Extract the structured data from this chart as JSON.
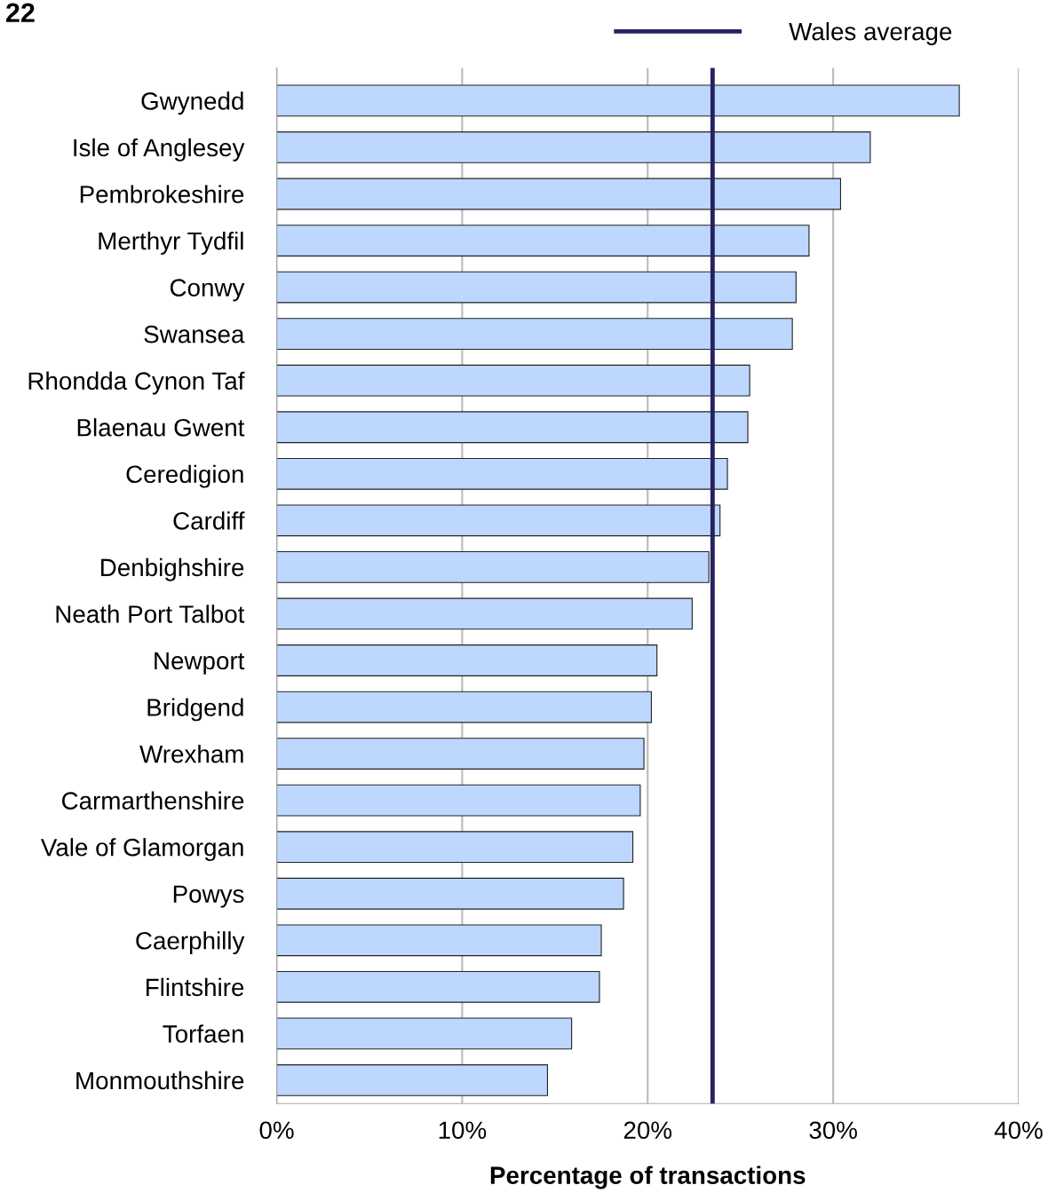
{
  "chart_data": {
    "type": "bar",
    "orientation": "horizontal",
    "xlabel": "Percentage of transactions",
    "annotations": [
      "22"
    ],
    "categories": [
      "Gwynedd",
      "Isle of Anglesey",
      "Pembrokeshire",
      "Merthyr Tydfil",
      "Conwy",
      "Swansea",
      "Rhondda Cynon Taf",
      "Blaenau Gwent",
      "Ceredigion",
      "Cardiff",
      "Denbighshire",
      "Neath Port Talbot",
      "Newport",
      "Bridgend",
      "Wrexham",
      "Carmarthenshire",
      "Vale of Glamorgan",
      "Powys",
      "Caerphilly",
      "Flintshire",
      "Torfaen",
      "Monmouthshire"
    ],
    "values": [
      36.8,
      32.0,
      30.4,
      28.7,
      28.0,
      27.8,
      25.5,
      25.4,
      24.3,
      23.9,
      23.3,
      22.4,
      20.5,
      20.2,
      19.8,
      19.6,
      19.2,
      18.7,
      17.5,
      17.4,
      15.9,
      14.6
    ],
    "color": "#bdd7ff",
    "xlim": [
      0,
      40
    ],
    "xticks": [
      {
        "value": 0,
        "label": "0%"
      },
      {
        "value": 10,
        "label": "10%"
      },
      {
        "value": 20,
        "label": "20%"
      },
      {
        "value": 30,
        "label": "30%"
      },
      {
        "value": 40,
        "label": "40%"
      }
    ],
    "ref_lines": [
      {
        "axis": "x",
        "value": 23.5,
        "label": "Wales average",
        "color": "#262262",
        "line_style": "solid"
      }
    ],
    "grid": "x",
    "legend": "top right"
  }
}
